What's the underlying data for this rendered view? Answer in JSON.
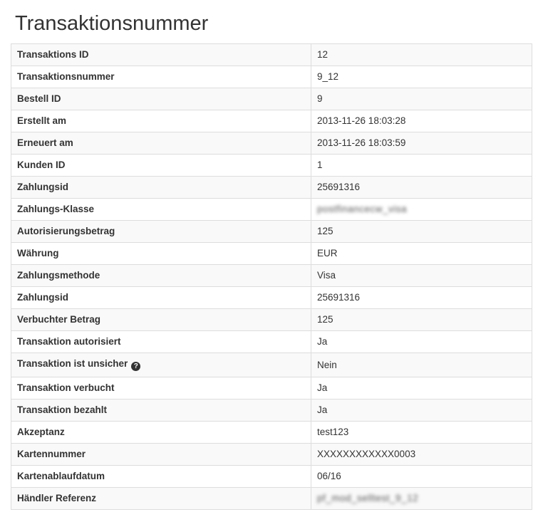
{
  "page": {
    "title": "Transaktionsnummer"
  },
  "colors": {
    "text": "#333333",
    "row_stripe": "#f9f9f9",
    "table_border": "#dddddd",
    "help_icon_bg": "#333333",
    "help_icon_fg": "#ffffff"
  },
  "table": {
    "help_icon_glyph": "?",
    "rows": [
      {
        "label": "Transaktions ID",
        "value": "12"
      },
      {
        "label": "Transaktionsnummer",
        "value": "9_12"
      },
      {
        "label": "Bestell ID",
        "value": "9"
      },
      {
        "label": "Erstellt am",
        "value": "2013-11-26 18:03:28"
      },
      {
        "label": "Erneuert am",
        "value": "2013-11-26 18:03:59"
      },
      {
        "label": "Kunden ID",
        "value": "1"
      },
      {
        "label": "Zahlungsid",
        "value": "25691316"
      },
      {
        "label": "Zahlungs-Klasse",
        "value": "postfinancecw_visa",
        "redacted": true
      },
      {
        "label": "Autorisierungsbetrag",
        "value": "125"
      },
      {
        "label": "Währung",
        "value": "EUR"
      },
      {
        "label": "Zahlungsmethode",
        "value": "Visa"
      },
      {
        "label": "Zahlungsid",
        "value": "25691316"
      },
      {
        "label": "Verbuchter Betrag",
        "value": "125"
      },
      {
        "label": "Transaktion autorisiert",
        "value": "Ja"
      },
      {
        "label": "Transaktion ist unsicher",
        "value": "Nein",
        "help_icon": true
      },
      {
        "label": "Transaktion verbucht",
        "value": "Ja"
      },
      {
        "label": "Transaktion bezahlt",
        "value": "Ja"
      },
      {
        "label": "Akzeptanz",
        "value": "test123"
      },
      {
        "label": "Kartennummer",
        "value": "XXXXXXXXXXXX0003"
      },
      {
        "label": "Kartenablaufdatum",
        "value": "06/16"
      },
      {
        "label": "Händler Referenz",
        "value": "pf_mod_selltest_9_12",
        "redacted": true
      }
    ]
  }
}
